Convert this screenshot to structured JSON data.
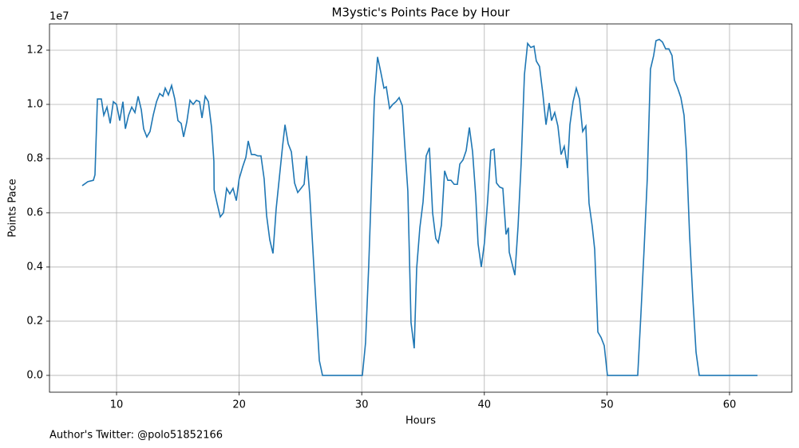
{
  "chart_data": {
    "type": "line",
    "title": "M3ystic's Points Pace by Hour",
    "xlabel": "Hours",
    "ylabel": "Points Pace",
    "y_offset_label": "1e7",
    "footnote": "Author's Twitter: @polo51852166",
    "color": "#1f77b4",
    "grid": true,
    "xlim": [
      4.53,
      65.08
    ],
    "ylim": [
      -0.062,
      1.297
    ],
    "xticks": [
      10,
      20,
      30,
      40,
      50,
      60
    ],
    "yticks": [
      {
        "value": 0,
        "label": "0.0"
      },
      0.2,
      0.4,
      0.6,
      0.8,
      {
        "value": 1,
        "label": "1.0"
      },
      1.2
    ],
    "x": [
      7.2,
      7.66,
      8.11,
      8.24,
      8.44,
      8.76,
      8.96,
      9.22,
      9.48,
      9.74,
      10.0,
      10.26,
      10.52,
      10.72,
      10.98,
      11.24,
      11.5,
      11.76,
      12.02,
      12.21,
      12.47,
      12.73,
      12.99,
      13.26,
      13.52,
      13.78,
      13.97,
      14.23,
      14.49,
      14.75,
      15.01,
      15.27,
      15.47,
      15.73,
      15.99,
      16.25,
      16.51,
      16.77,
      16.97,
      17.23,
      17.49,
      17.75,
      17.94,
      17.96,
      18.2,
      18.46,
      18.72,
      18.98,
      19.24,
      19.5,
      19.77,
      20.0,
      20.29,
      20.55,
      20.74,
      21.0,
      21.26,
      21.52,
      21.78,
      22.04,
      22.24,
      22.5,
      22.76,
      23.02,
      23.28,
      23.54,
      23.74,
      24.0,
      24.26,
      24.52,
      24.78,
      25.04,
      25.3,
      25.5,
      25.76,
      26.02,
      26.28,
      26.54,
      26.8,
      30.05,
      30.31,
      30.57,
      30.83,
      31.03,
      31.29,
      31.55,
      31.81,
      32.0,
      32.27,
      32.53,
      32.79,
      33.05,
      33.31,
      33.5,
      33.76,
      34.02,
      34.28,
      34.48,
      34.74,
      35.0,
      35.26,
      35.52,
      35.78,
      36.04,
      36.24,
      36.5,
      36.76,
      37.02,
      37.28,
      37.54,
      37.8,
      38.0,
      38.26,
      38.52,
      38.78,
      39.04,
      39.3,
      39.49,
      39.75,
      40.01,
      40.27,
      40.53,
      40.79,
      40.99,
      41.25,
      41.51,
      41.77,
      41.96,
      42.03,
      42.49,
      42.75,
      43.0,
      43.27,
      43.53,
      43.79,
      44.05,
      44.24,
      44.5,
      44.77,
      45.03,
      45.29,
      45.48,
      45.74,
      46.0,
      46.26,
      46.52,
      46.78,
      46.98,
      47.24,
      47.5,
      47.76,
      48.02,
      48.28,
      48.54,
      48.8,
      49.0,
      49.26,
      49.52,
      49.78,
      50.04,
      52.51,
      52.77,
      53.03,
      53.29,
      53.55,
      53.81,
      54.0,
      54.27,
      54.53,
      54.79,
      55.05,
      55.31,
      55.5,
      55.77,
      56.03,
      56.29,
      56.48,
      56.74,
      57.0,
      57.27,
      57.53,
      62.28
    ],
    "values": [
      0.7,
      0.715,
      0.72,
      0.74,
      1.02,
      1.02,
      0.96,
      0.99,
      0.93,
      1.01,
      1.0,
      0.94,
      1.01,
      0.91,
      0.96,
      0.99,
      0.97,
      1.03,
      0.98,
      0.91,
      0.88,
      0.9,
      0.96,
      1.01,
      1.04,
      1.03,
      1.06,
      1.035,
      1.07,
      1.02,
      0.94,
      0.93,
      0.88,
      0.935,
      1.015,
      1.0,
      1.015,
      1.01,
      0.95,
      1.03,
      1.01,
      0.915,
      0.79,
      0.685,
      0.635,
      0.585,
      0.6,
      0.69,
      0.67,
      0.69,
      0.645,
      0.725,
      0.77,
      0.805,
      0.865,
      0.815,
      0.815,
      0.81,
      0.81,
      0.725,
      0.59,
      0.5,
      0.45,
      0.615,
      0.73,
      0.845,
      0.925,
      0.855,
      0.825,
      0.71,
      0.675,
      0.69,
      0.705,
      0.81,
      0.665,
      0.46,
      0.255,
      0.055,
      0,
      0,
      0.12,
      0.405,
      0.75,
      1.02,
      1.175,
      1.12,
      1.06,
      1.065,
      0.985,
      1.0,
      1.01,
      1.025,
      0.995,
      0.855,
      0.68,
      0.195,
      0.1,
      0.395,
      0.545,
      0.64,
      0.81,
      0.84,
      0.6,
      0.505,
      0.49,
      0.555,
      0.755,
      0.72,
      0.72,
      0.705,
      0.705,
      0.78,
      0.795,
      0.83,
      0.915,
      0.825,
      0.66,
      0.485,
      0.4,
      0.49,
      0.645,
      0.83,
      0.835,
      0.71,
      0.695,
      0.69,
      0.52,
      0.545,
      0.455,
      0.37,
      0.55,
      0.78,
      1.11,
      1.225,
      1.21,
      1.215,
      1.16,
      1.14,
      1.04,
      0.925,
      1.005,
      0.94,
      0.97,
      0.92,
      0.815,
      0.845,
      0.765,
      0.925,
      1.01,
      1.06,
      1.02,
      0.9,
      0.92,
      0.635,
      0.55,
      0.465,
      0.16,
      0.14,
      0.11,
      0,
      0,
      0.225,
      0.465,
      0.725,
      1.13,
      1.18,
      1.235,
      1.24,
      1.23,
      1.205,
      1.205,
      1.18,
      1.09,
      1.06,
      1.025,
      0.96,
      0.825,
      0.52,
      0.29,
      0.085,
      0,
      0
    ]
  }
}
